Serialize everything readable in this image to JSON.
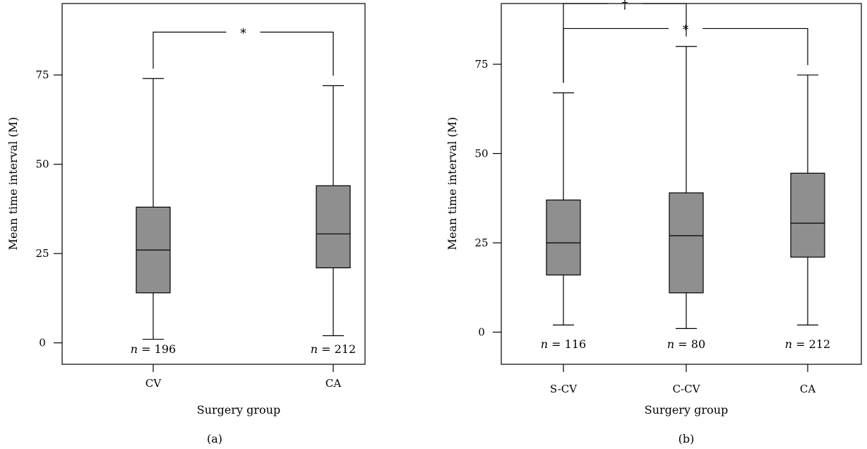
{
  "chart_data": [
    {
      "type": "box",
      "panel_label": "(a)",
      "xlabel": "Surgery group",
      "ylabel": "Mean time interval (M)",
      "yticks": [
        0,
        25,
        50,
        75
      ],
      "ylim": [
        -6,
        95
      ],
      "categories": [
        "CV",
        "CA"
      ],
      "boxes": [
        {
          "category": "CV",
          "min": 1,
          "q1": 14,
          "median": 26,
          "q3": 38,
          "max": 74,
          "n_label": "n = 196",
          "n_var": "n",
          "n_val": "= 196"
        },
        {
          "category": "CA",
          "min": 2,
          "q1": 21,
          "median": 30.5,
          "q3": 44,
          "max": 72,
          "n_label": "n = 212",
          "n_var": "n",
          "n_val": "= 212"
        }
      ],
      "annotations": [
        {
          "symbol": "*",
          "from": "CV",
          "to": "CA",
          "level": 87
        }
      ]
    },
    {
      "type": "box",
      "panel_label": "(b)",
      "xlabel": "Surgery group",
      "ylabel": "Mean time interval (M)",
      "yticks": [
        0,
        25,
        50,
        75
      ],
      "ylim": [
        -9,
        92
      ],
      "categories": [
        "S-CV",
        "C-CV",
        "CA"
      ],
      "boxes": [
        {
          "category": "S-CV",
          "min": 2,
          "q1": 16,
          "median": 25,
          "q3": 37,
          "max": 67,
          "n_label": "n = 116",
          "n_var": "n",
          "n_val": "= 116"
        },
        {
          "category": "C-CV",
          "min": 1,
          "q1": 11,
          "median": 27,
          "q3": 39,
          "max": 80,
          "n_label": "n = 80",
          "n_var": "n",
          "n_val": "= 80"
        },
        {
          "category": "CA",
          "min": 2,
          "q1": 21,
          "median": 30.5,
          "q3": 44.5,
          "max": 72,
          "n_label": "n = 212",
          "n_var": "n",
          "n_val": "= 212"
        }
      ],
      "annotations": [
        {
          "symbol": "†",
          "from": "S-CV",
          "to": "C-CV",
          "level": 92
        },
        {
          "symbol": "*",
          "from": "S-CV",
          "to": "CA",
          "level": 85
        }
      ]
    }
  ]
}
